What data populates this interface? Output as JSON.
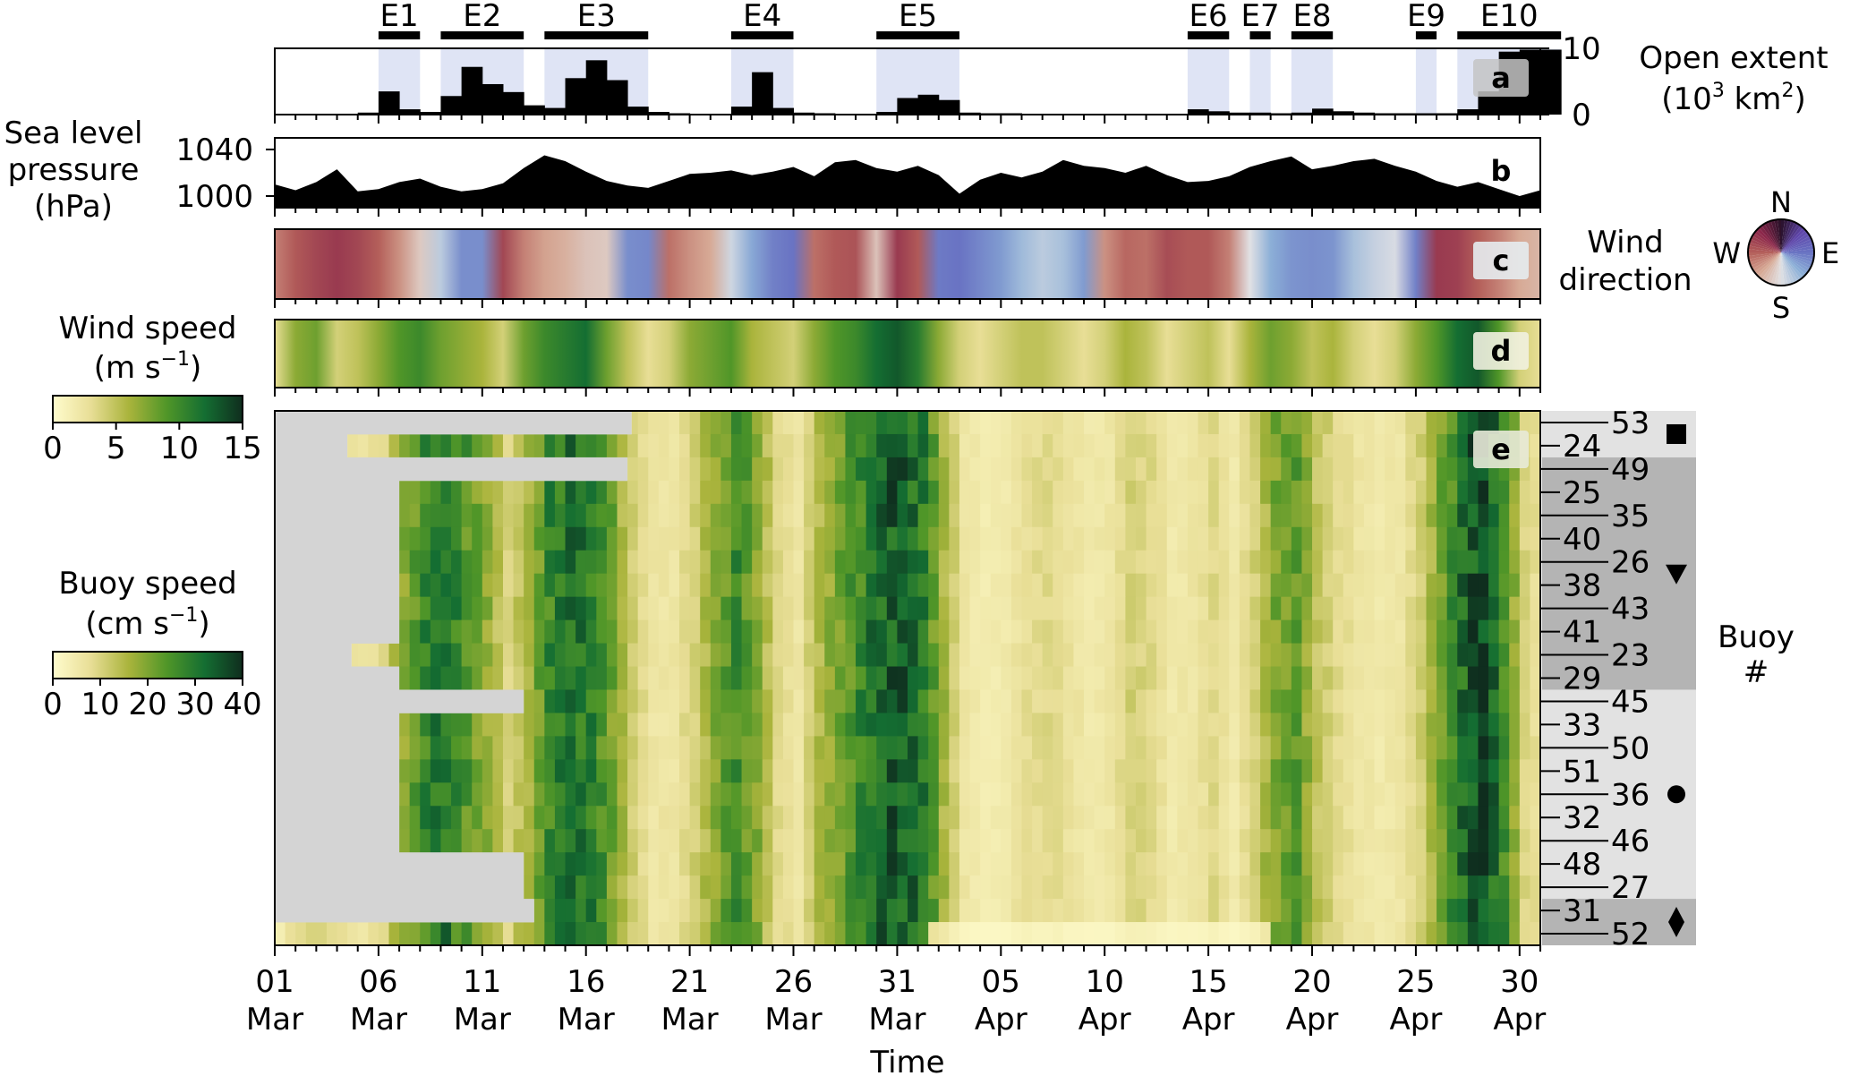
{
  "chart_data": [
    {
      "panel": "a",
      "type": "bar",
      "ylabel_lines": [
        "Open extent",
        "(10",
        "3",
        " km",
        "2",
        ")"
      ],
      "yticks": [
        "0",
        "10"
      ],
      "ylim": [
        0,
        10
      ],
      "events": [
        {
          "name": "E1",
          "start": 5,
          "end": 7
        },
        {
          "name": "E2",
          "start": 8,
          "end": 12
        },
        {
          "name": "E3",
          "start": 13,
          "end": 18
        },
        {
          "name": "E4",
          "start": 22,
          "end": 25
        },
        {
          "name": "E5",
          "start": 29,
          "end": 33
        },
        {
          "name": "E6",
          "start": 44,
          "end": 46
        },
        {
          "name": "E7",
          "start": 47,
          "end": 48
        },
        {
          "name": "E8",
          "start": 49,
          "end": 51
        },
        {
          "name": "E9",
          "start": 55,
          "end": 56
        },
        {
          "name": "E10",
          "start": 57,
          "end": 62
        }
      ],
      "x": [
        4,
        5,
        6,
        7,
        8,
        9,
        10,
        11,
        12,
        13,
        14,
        15,
        16,
        17,
        18,
        19,
        20,
        21,
        22,
        23,
        24,
        25,
        26,
        27,
        28,
        29,
        30,
        31,
        32,
        33,
        34,
        35,
        36,
        37,
        38,
        39,
        40,
        41,
        42,
        43,
        44,
        45,
        46,
        47,
        48,
        49,
        50,
        51,
        52,
        53,
        54,
        55,
        56,
        57,
        58,
        59,
        60,
        61
      ],
      "values": [
        0.3,
        3.5,
        0.8,
        0.4,
        2.8,
        7.2,
        4.6,
        3.4,
        1.4,
        1.0,
        5.5,
        8.2,
        5.2,
        1.2,
        0.4,
        0.2,
        0.1,
        0.1,
        1.2,
        6.4,
        1.0,
        0.3,
        0.2,
        0.1,
        0.1,
        0.4,
        2.5,
        3.0,
        2.2,
        0.3,
        0.2,
        0.2,
        0.1,
        0.1,
        0.1,
        0.1,
        0.1,
        0.1,
        0.1,
        0.1,
        0.8,
        0.5,
        0.3,
        0.3,
        0.2,
        0.3,
        0.9,
        0.5,
        0.3,
        0.2,
        0.2,
        0.2,
        0.2,
        0.8,
        3.5,
        9.5,
        9.8,
        9.8
      ],
      "panel_label": "a"
    },
    {
      "panel": "b",
      "type": "area",
      "ylabel_lines": [
        "Sea level",
        "pressure",
        "(hPa)"
      ],
      "yticks": [
        "1000",
        "1040"
      ],
      "ylim": [
        990,
        1050
      ],
      "x": [
        0,
        1,
        2,
        3,
        4,
        5,
        6,
        7,
        8,
        9,
        10,
        11,
        12,
        13,
        14,
        15,
        16,
        17,
        18,
        19,
        20,
        21,
        22,
        23,
        24,
        25,
        26,
        27,
        28,
        29,
        30,
        31,
        32,
        33,
        34,
        35,
        36,
        37,
        38,
        39,
        40,
        41,
        42,
        43,
        44,
        45,
        46,
        47,
        48,
        49,
        50,
        51,
        52,
        53,
        54,
        55,
        56,
        57,
        58,
        59,
        60,
        61
      ],
      "values": [
        1010,
        1005,
        1012,
        1023,
        1004,
        1006,
        1012,
        1015,
        1008,
        1004,
        1006,
        1011,
        1024,
        1035,
        1030,
        1021,
        1013,
        1009,
        1007,
        1013,
        1019,
        1020,
        1022,
        1018,
        1021,
        1025,
        1017,
        1029,
        1031,
        1024,
        1021,
        1026,
        1018,
        1002,
        1014,
        1020,
        1016,
        1021,
        1031,
        1026,
        1024,
        1020,
        1026,
        1018,
        1012,
        1013,
        1017,
        1025,
        1030,
        1034,
        1023,
        1026,
        1030,
        1032,
        1026,
        1021,
        1013,
        1008,
        1012,
        1006,
        1000,
        1005
      ],
      "panel_label": "b"
    },
    {
      "panel": "c",
      "type": "heatmap",
      "label_lines": [
        "Wind",
        "direction"
      ],
      "compass": [
        "N",
        "E",
        "S",
        "W"
      ],
      "x": [
        0,
        1,
        2,
        3,
        4,
        5,
        6,
        7,
        8,
        9,
        10,
        11,
        12,
        13,
        14,
        15,
        16,
        17,
        18,
        19,
        20,
        21,
        22,
        23,
        24,
        25,
        26,
        27,
        28,
        29,
        30,
        31,
        32,
        33,
        34,
        35,
        36,
        37,
        38,
        39,
        40,
        41,
        42,
        43,
        44,
        45,
        46,
        47,
        48,
        49,
        50,
        51,
        52,
        53,
        54,
        55,
        56,
        57,
        58,
        59,
        60,
        61
      ],
      "direction_deg": [
        250,
        275,
        290,
        300,
        290,
        270,
        240,
        200,
        160,
        110,
        110,
        290,
        250,
        230,
        220,
        205,
        200,
        110,
        105,
        260,
        240,
        225,
        170,
        130,
        100,
        90,
        260,
        275,
        280,
        205,
        300,
        275,
        95,
        90,
        105,
        120,
        145,
        160,
        150,
        120,
        240,
        265,
        260,
        285,
        275,
        275,
        250,
        180,
        135,
        115,
        110,
        115,
        150,
        165,
        175,
        100,
        300,
        295,
        270,
        250,
        225,
        215
      ],
      "panel_label": "c"
    },
    {
      "panel": "d",
      "type": "heatmap",
      "label_lines": [
        "Wind speed",
        "(m s",
        "−1",
        ")"
      ],
      "colorbar_ticks": [
        "0",
        "5",
        "10",
        "15"
      ],
      "range": [
        0,
        15
      ],
      "x": [
        0,
        1,
        2,
        3,
        4,
        5,
        6,
        7,
        8,
        9,
        10,
        11,
        12,
        13,
        14,
        15,
        16,
        17,
        18,
        19,
        20,
        21,
        22,
        23,
        24,
        25,
        26,
        27,
        28,
        29,
        30,
        31,
        32,
        33,
        34,
        35,
        36,
        37,
        38,
        39,
        40,
        41,
        42,
        43,
        44,
        45,
        46,
        47,
        48,
        49,
        50,
        51,
        52,
        53,
        54,
        55,
        56,
        57,
        58,
        59,
        60,
        61
      ],
      "values": [
        3,
        7,
        8,
        4,
        5,
        7,
        9,
        10,
        8,
        7,
        6,
        4,
        8,
        10,
        11,
        12,
        8,
        5,
        3,
        4,
        7,
        8,
        9,
        6,
        5,
        4,
        7,
        9,
        10,
        12,
        13,
        11,
        7,
        4,
        3,
        4,
        5,
        5,
        4,
        3,
        4,
        6,
        5,
        3,
        4,
        5,
        3,
        6,
        8,
        7,
        5,
        6,
        4,
        3,
        4,
        7,
        9,
        12,
        13,
        9,
        4,
        3
      ],
      "panel_label": "d"
    },
    {
      "panel": "e",
      "type": "heatmap",
      "label_lines": [
        "Buoy speed",
        "(cm s",
        "−1",
        ")"
      ],
      "colorbar_ticks": [
        "0",
        "10",
        "20",
        "30",
        "40"
      ],
      "range": [
        0,
        40
      ],
      "xlabel": "Time",
      "xticks": [
        {
          "day": "01",
          "month": "Mar",
          "x": 0
        },
        {
          "day": "06",
          "month": "Mar",
          "x": 5
        },
        {
          "day": "11",
          "month": "Mar",
          "x": 10
        },
        {
          "day": "16",
          "month": "Mar",
          "x": 15
        },
        {
          "day": "21",
          "month": "Mar",
          "x": 20
        },
        {
          "day": "26",
          "month": "Mar",
          "x": 25
        },
        {
          "day": "31",
          "month": "Mar",
          "x": 30
        },
        {
          "day": "05",
          "month": "Apr",
          "x": 35
        },
        {
          "day": "10",
          "month": "Apr",
          "x": 40
        },
        {
          "day": "15",
          "month": "Apr",
          "x": 45
        },
        {
          "day": "20",
          "month": "Apr",
          "x": 50
        },
        {
          "day": "25",
          "month": "Apr",
          "x": 55
        },
        {
          "day": "30",
          "month": "Apr",
          "x": 60
        }
      ],
      "buoy_axis_label": [
        "Buoy",
        "#"
      ],
      "buoys": [
        "53",
        "24",
        "49",
        "25",
        "35",
        "40",
        "26",
        "38",
        "43",
        "41",
        "23",
        "29",
        "45",
        "33",
        "50",
        "51",
        "36",
        "32",
        "46",
        "48",
        "27",
        "31",
        "52"
      ],
      "buoy_start_day": [
        17.2,
        3.5,
        17.0,
        6.0,
        6.0,
        6.0,
        6.0,
        6.0,
        6.0,
        6.0,
        3.7,
        6.0,
        12.0,
        6.0,
        6.0,
        6.0,
        6.0,
        6.0,
        6.0,
        12.0,
        12.0,
        12.5,
        0
      ],
      "buoy_groups": [
        {
          "marker": "square",
          "first": 0,
          "last": 1,
          "shade": "#e2e2e2"
        },
        {
          "marker": "triangle-down",
          "first": 2,
          "last": 11,
          "shade": "#b4b4b4"
        },
        {
          "marker": "circle",
          "first": 12,
          "last": 20,
          "shade": "#e2e2e2"
        },
        {
          "marker": "diamond",
          "first": 21,
          "last": 22,
          "shade": "#b4b4b4"
        }
      ],
      "mean_speed_series": [
        4,
        9,
        12,
        8,
        6,
        10,
        19,
        27,
        30,
        24,
        18,
        10,
        16,
        27,
        31,
        29,
        21,
        11,
        6,
        6,
        11,
        19,
        26,
        19,
        9,
        6,
        15,
        21,
        27,
        33,
        34,
        29,
        16,
        6,
        4,
        5,
        8,
        9,
        7,
        5,
        6,
        11,
        9,
        5,
        6,
        9,
        5,
        11,
        20,
        23,
        13,
        9,
        6,
        5,
        6,
        11,
        21,
        31,
        38,
        26,
        10,
        6
      ],
      "panel_label": "e"
    }
  ]
}
